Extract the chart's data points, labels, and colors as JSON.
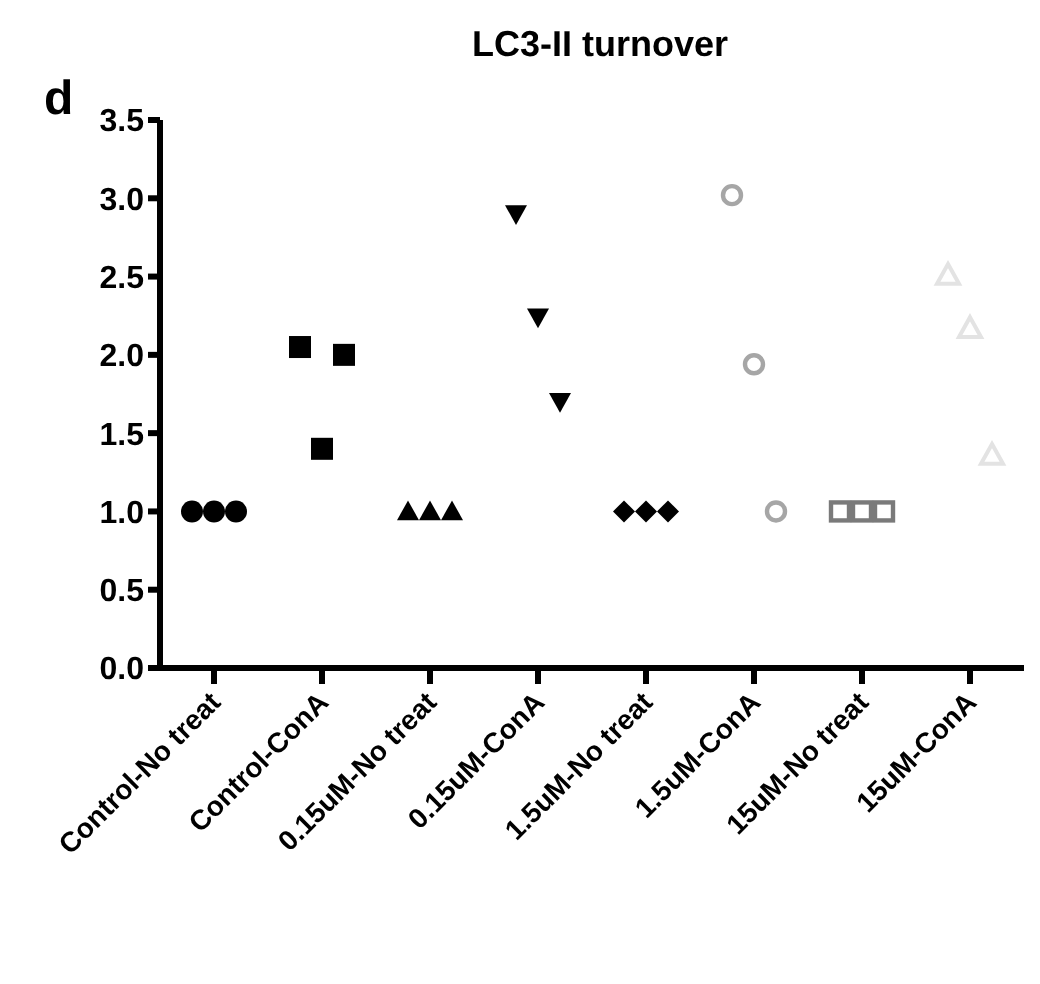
{
  "chart_data": {
    "type": "scatter",
    "title": "LC3-II turnover",
    "annotations": [
      "d"
    ],
    "categories": [
      "Control-No treat",
      "Control-ConA",
      "0.15uM-No treat",
      "0.15uM-ConA",
      "1.5uM-No treat",
      "1.5uM-ConA",
      "15uM-No treat",
      "15uM-ConA"
    ],
    "ylim": [
      0,
      3.5
    ],
    "yticks": [
      {
        "value": 0,
        "label": "0.0"
      },
      {
        "value": 0.5,
        "label": "0.5"
      },
      {
        "value": 1,
        "label": "1.0"
      },
      {
        "value": 1.5,
        "label": "1.5"
      },
      {
        "value": 2,
        "label": "2.0"
      },
      {
        "value": 2.5,
        "label": "2.5"
      },
      {
        "value": 3,
        "label": "3.0"
      },
      {
        "value": 3.5,
        "label": "3.5"
      }
    ],
    "grid": false,
    "legend": false,
    "series": [
      {
        "x": [
          "Control-No treat",
          "Control-No treat",
          "Control-No treat"
        ],
        "values": [
          1,
          1,
          1
        ],
        "marker": "circle",
        "color": "#000000"
      },
      {
        "x": [
          "Control-ConA",
          "Control-ConA",
          "Control-ConA"
        ],
        "values": [
          2.05,
          1.4,
          2.0
        ],
        "marker": "square",
        "color": "#000000"
      },
      {
        "x": [
          "0.15uM-No treat",
          "0.15uM-No treat",
          "0.15uM-No treat"
        ],
        "values": [
          1,
          1,
          1
        ],
        "marker": "triangle",
        "color": "#000000"
      },
      {
        "x": [
          "0.15uM-ConA",
          "0.15uM-ConA",
          "0.15uM-ConA"
        ],
        "values": [
          2.9,
          2.24,
          1.7
        ],
        "marker": "triangle-down",
        "color": "#000000"
      },
      {
        "x": [
          "1.5uM-No treat",
          "1.5uM-No treat",
          "1.5uM-No treat"
        ],
        "values": [
          1,
          1,
          1
        ],
        "marker": "diamond",
        "color": "#000000"
      },
      {
        "x": [
          "1.5uM-ConA",
          "1.5uM-ConA",
          "1.5uM-ConA"
        ],
        "values": [
          3.02,
          1.94,
          1.0
        ],
        "marker": "circle-open",
        "color": "#a6a6a6"
      },
      {
        "x": [
          "15uM-No treat",
          "15uM-No treat",
          "15uM-No treat"
        ],
        "values": [
          1,
          1,
          1
        ],
        "marker": "square-open",
        "color": "#7a7a7a"
      },
      {
        "x": [
          "15uM-ConA",
          "15uM-ConA",
          "15uM-ConA"
        ],
        "values": [
          2.51,
          2.17,
          1.36
        ],
        "marker": "triangle-open",
        "color": "#e3e3e3"
      }
    ]
  }
}
